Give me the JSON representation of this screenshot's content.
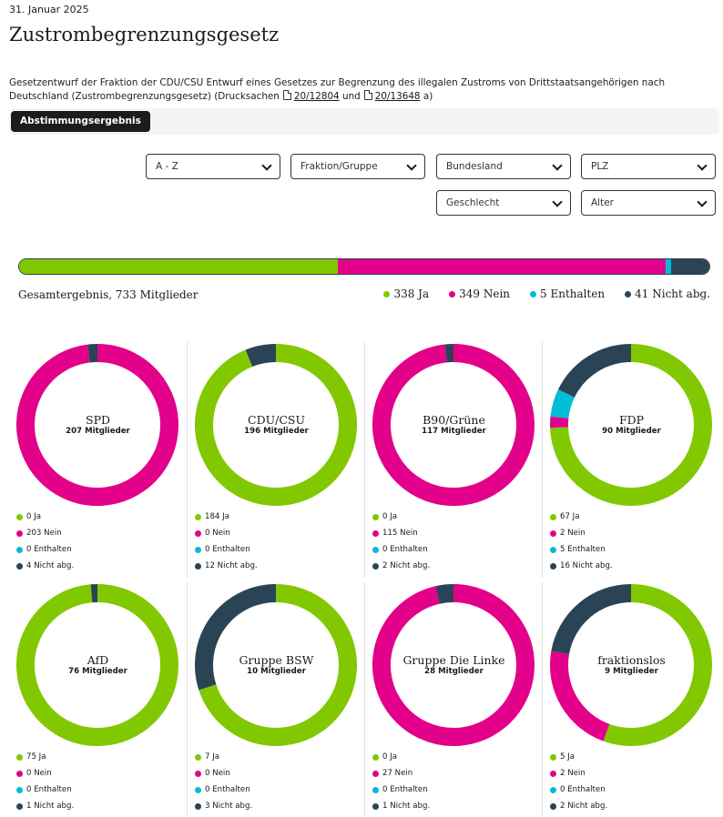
{
  "date": "31. Januar 2025",
  "title": "Zustrombegrenzungsgesetz",
  "description": {
    "text": "Gesetzentwurf der Fraktion der CDU/CSU Entwurf eines Gesetzes zur Begrenzung des illegalen Zustroms von Drittstaatsangehörigen nach Deutschland (Zustrombegrenzungsgesetz) (Drucksachen",
    "link1": "20/12804",
    "and": "und",
    "link2": "20/13648",
    "suffix": "a)"
  },
  "tab": {
    "label": "Abstimmungsergebnis"
  },
  "filters": {
    "sort": "A - Z",
    "fraktion": "Fraktion/Gruppe",
    "bundesland": "Bundesland",
    "plz": "PLZ",
    "geschlecht": "Geschlecht",
    "alter": "Alter"
  },
  "colors": {
    "ja": "#82c800",
    "nein": "#e3008a",
    "enthalten": "#00bcd4",
    "nicht": "#2b4455"
  },
  "total": {
    "label": "Gesamtergebnis, 733 Mitglieder",
    "ja": 338,
    "nein": 349,
    "enthalten": 5,
    "nicht": 41,
    "legend": {
      "ja": "338 Ja",
      "nein": "349 Nein",
      "enthalten": "5 Enthalten",
      "nicht": "41 Nicht abg."
    }
  },
  "chart_data": {
    "type": "pie",
    "categories": [
      "Ja",
      "Nein",
      "Enthalten",
      "Nicht abg."
    ],
    "series": [
      {
        "name": "SPD",
        "members": "207 Mitglieder",
        "values": [
          0,
          203,
          0,
          4
        ],
        "labels": [
          "0 Ja",
          "203 Nein",
          "0 Enthalten",
          "4 Nicht abg."
        ]
      },
      {
        "name": "CDU/CSU",
        "members": "196 Mitglieder",
        "values": [
          184,
          0,
          0,
          12
        ],
        "labels": [
          "184 Ja",
          "0 Nein",
          "0 Enthalten",
          "12 Nicht abg."
        ]
      },
      {
        "name": "B90/Grüne",
        "members": "117 Mitglieder",
        "values": [
          0,
          115,
          0,
          2
        ],
        "labels": [
          "0 Ja",
          "115 Nein",
          "0 Enthalten",
          "2 Nicht abg."
        ]
      },
      {
        "name": "FDP",
        "members": "90 Mitglieder",
        "values": [
          67,
          2,
          5,
          16
        ],
        "labels": [
          "67 Ja",
          "2 Nein",
          "5 Enthalten",
          "16 Nicht abg."
        ]
      },
      {
        "name": "AfD",
        "members": "76 Mitglieder",
        "values": [
          75,
          0,
          0,
          1
        ],
        "labels": [
          "75 Ja",
          "0 Nein",
          "0 Enthalten",
          "1 Nicht abg."
        ]
      },
      {
        "name": "Gruppe BSW",
        "members": "10 Mitglieder",
        "values": [
          7,
          0,
          0,
          3
        ],
        "labels": [
          "7 Ja",
          "0 Nein",
          "0 Enthalten",
          "3 Nicht abg."
        ]
      },
      {
        "name": "Gruppe Die Linke",
        "members": "28 Mitglieder",
        "values": [
          0,
          27,
          0,
          1
        ],
        "labels": [
          "0 Ja",
          "27 Nein",
          "0 Enthalten",
          "1 Nicht abg."
        ]
      },
      {
        "name": "fraktionslos",
        "members": "9 Mitglieder",
        "values": [
          5,
          2,
          0,
          2
        ],
        "labels": [
          "5 Ja",
          "2 Nein",
          "0 Enthalten",
          "2 Nicht abg."
        ]
      }
    ]
  }
}
